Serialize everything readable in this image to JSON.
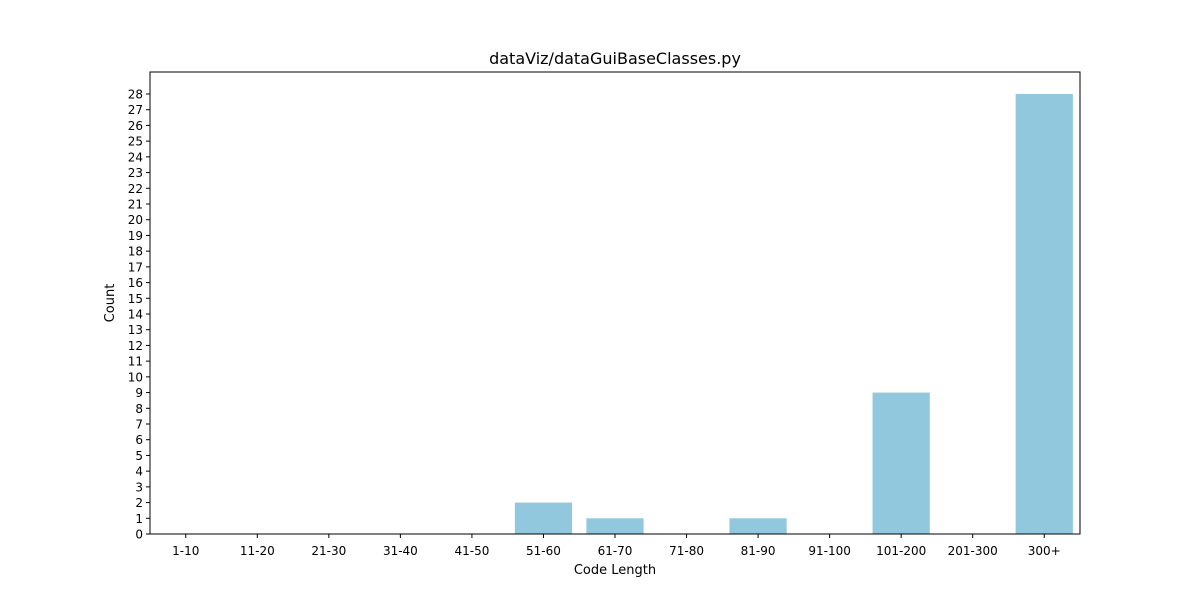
{
  "chart_data": {
    "type": "bar",
    "title": "dataViz/dataGuiBaseClasses.py",
    "xlabel": "Code Length",
    "ylabel": "Count",
    "categories": [
      "1-10",
      "11-20",
      "21-30",
      "31-40",
      "41-50",
      "51-60",
      "61-70",
      "71-80",
      "81-90",
      "91-100",
      "101-200",
      "201-300",
      "300+"
    ],
    "values": [
      0,
      0,
      0,
      0,
      0,
      2,
      1,
      0,
      1,
      0,
      9,
      0,
      28
    ],
    "ylim": [
      0,
      29.4
    ],
    "yticks": [
      0,
      1,
      2,
      3,
      4,
      5,
      6,
      7,
      8,
      9,
      10,
      11,
      12,
      13,
      14,
      15,
      16,
      17,
      18,
      19,
      20,
      21,
      22,
      23,
      24,
      25,
      26,
      27,
      28
    ],
    "bar_color": "#92c8de",
    "grid": false,
    "legend": "none"
  }
}
